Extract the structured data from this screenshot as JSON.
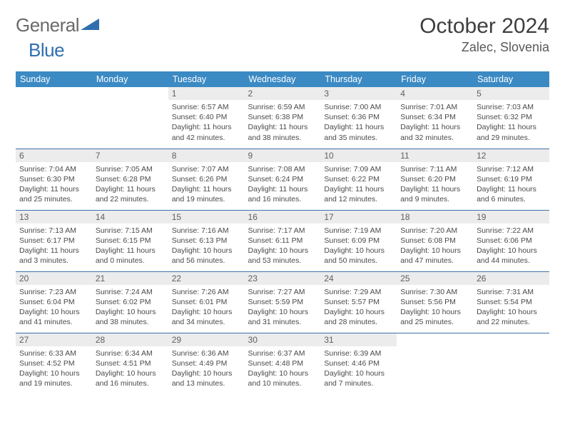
{
  "brand": {
    "part1": "General",
    "part2": "Blue"
  },
  "title": "October 2024",
  "location": "Zalec, Slovenia",
  "colors": {
    "header_bg": "#3b8ac4",
    "header_text": "#ffffff",
    "daynum_bg": "#ececec",
    "border": "#3b72a8",
    "brand_gray": "#6a6a6a",
    "brand_blue": "#2f6fb0"
  },
  "weekdays": [
    "Sunday",
    "Monday",
    "Tuesday",
    "Wednesday",
    "Thursday",
    "Friday",
    "Saturday"
  ],
  "grid": [
    [
      {
        "n": "",
        "lines": []
      },
      {
        "n": "",
        "lines": []
      },
      {
        "n": "1",
        "lines": [
          "Sunrise: 6:57 AM",
          "Sunset: 6:40 PM",
          "Daylight: 11 hours and 42 minutes."
        ]
      },
      {
        "n": "2",
        "lines": [
          "Sunrise: 6:59 AM",
          "Sunset: 6:38 PM",
          "Daylight: 11 hours and 38 minutes."
        ]
      },
      {
        "n": "3",
        "lines": [
          "Sunrise: 7:00 AM",
          "Sunset: 6:36 PM",
          "Daylight: 11 hours and 35 minutes."
        ]
      },
      {
        "n": "4",
        "lines": [
          "Sunrise: 7:01 AM",
          "Sunset: 6:34 PM",
          "Daylight: 11 hours and 32 minutes."
        ]
      },
      {
        "n": "5",
        "lines": [
          "Sunrise: 7:03 AM",
          "Sunset: 6:32 PM",
          "Daylight: 11 hours and 29 minutes."
        ]
      }
    ],
    [
      {
        "n": "6",
        "lines": [
          "Sunrise: 7:04 AM",
          "Sunset: 6:30 PM",
          "Daylight: 11 hours and 25 minutes."
        ]
      },
      {
        "n": "7",
        "lines": [
          "Sunrise: 7:05 AM",
          "Sunset: 6:28 PM",
          "Daylight: 11 hours and 22 minutes."
        ]
      },
      {
        "n": "8",
        "lines": [
          "Sunrise: 7:07 AM",
          "Sunset: 6:26 PM",
          "Daylight: 11 hours and 19 minutes."
        ]
      },
      {
        "n": "9",
        "lines": [
          "Sunrise: 7:08 AM",
          "Sunset: 6:24 PM",
          "Daylight: 11 hours and 16 minutes."
        ]
      },
      {
        "n": "10",
        "lines": [
          "Sunrise: 7:09 AM",
          "Sunset: 6:22 PM",
          "Daylight: 11 hours and 12 minutes."
        ]
      },
      {
        "n": "11",
        "lines": [
          "Sunrise: 7:11 AM",
          "Sunset: 6:20 PM",
          "Daylight: 11 hours and 9 minutes."
        ]
      },
      {
        "n": "12",
        "lines": [
          "Sunrise: 7:12 AM",
          "Sunset: 6:19 PM",
          "Daylight: 11 hours and 6 minutes."
        ]
      }
    ],
    [
      {
        "n": "13",
        "lines": [
          "Sunrise: 7:13 AM",
          "Sunset: 6:17 PM",
          "Daylight: 11 hours and 3 minutes."
        ]
      },
      {
        "n": "14",
        "lines": [
          "Sunrise: 7:15 AM",
          "Sunset: 6:15 PM",
          "Daylight: 11 hours and 0 minutes."
        ]
      },
      {
        "n": "15",
        "lines": [
          "Sunrise: 7:16 AM",
          "Sunset: 6:13 PM",
          "Daylight: 10 hours and 56 minutes."
        ]
      },
      {
        "n": "16",
        "lines": [
          "Sunrise: 7:17 AM",
          "Sunset: 6:11 PM",
          "Daylight: 10 hours and 53 minutes."
        ]
      },
      {
        "n": "17",
        "lines": [
          "Sunrise: 7:19 AM",
          "Sunset: 6:09 PM",
          "Daylight: 10 hours and 50 minutes."
        ]
      },
      {
        "n": "18",
        "lines": [
          "Sunrise: 7:20 AM",
          "Sunset: 6:08 PM",
          "Daylight: 10 hours and 47 minutes."
        ]
      },
      {
        "n": "19",
        "lines": [
          "Sunrise: 7:22 AM",
          "Sunset: 6:06 PM",
          "Daylight: 10 hours and 44 minutes."
        ]
      }
    ],
    [
      {
        "n": "20",
        "lines": [
          "Sunrise: 7:23 AM",
          "Sunset: 6:04 PM",
          "Daylight: 10 hours and 41 minutes."
        ]
      },
      {
        "n": "21",
        "lines": [
          "Sunrise: 7:24 AM",
          "Sunset: 6:02 PM",
          "Daylight: 10 hours and 38 minutes."
        ]
      },
      {
        "n": "22",
        "lines": [
          "Sunrise: 7:26 AM",
          "Sunset: 6:01 PM",
          "Daylight: 10 hours and 34 minutes."
        ]
      },
      {
        "n": "23",
        "lines": [
          "Sunrise: 7:27 AM",
          "Sunset: 5:59 PM",
          "Daylight: 10 hours and 31 minutes."
        ]
      },
      {
        "n": "24",
        "lines": [
          "Sunrise: 7:29 AM",
          "Sunset: 5:57 PM",
          "Daylight: 10 hours and 28 minutes."
        ]
      },
      {
        "n": "25",
        "lines": [
          "Sunrise: 7:30 AM",
          "Sunset: 5:56 PM",
          "Daylight: 10 hours and 25 minutes."
        ]
      },
      {
        "n": "26",
        "lines": [
          "Sunrise: 7:31 AM",
          "Sunset: 5:54 PM",
          "Daylight: 10 hours and 22 minutes."
        ]
      }
    ],
    [
      {
        "n": "27",
        "lines": [
          "Sunrise: 6:33 AM",
          "Sunset: 4:52 PM",
          "Daylight: 10 hours and 19 minutes."
        ]
      },
      {
        "n": "28",
        "lines": [
          "Sunrise: 6:34 AM",
          "Sunset: 4:51 PM",
          "Daylight: 10 hours and 16 minutes."
        ]
      },
      {
        "n": "29",
        "lines": [
          "Sunrise: 6:36 AM",
          "Sunset: 4:49 PM",
          "Daylight: 10 hours and 13 minutes."
        ]
      },
      {
        "n": "30",
        "lines": [
          "Sunrise: 6:37 AM",
          "Sunset: 4:48 PM",
          "Daylight: 10 hours and 10 minutes."
        ]
      },
      {
        "n": "31",
        "lines": [
          "Sunrise: 6:39 AM",
          "Sunset: 4:46 PM",
          "Daylight: 10 hours and 7 minutes."
        ]
      },
      {
        "n": "",
        "lines": []
      },
      {
        "n": "",
        "lines": []
      }
    ]
  ]
}
